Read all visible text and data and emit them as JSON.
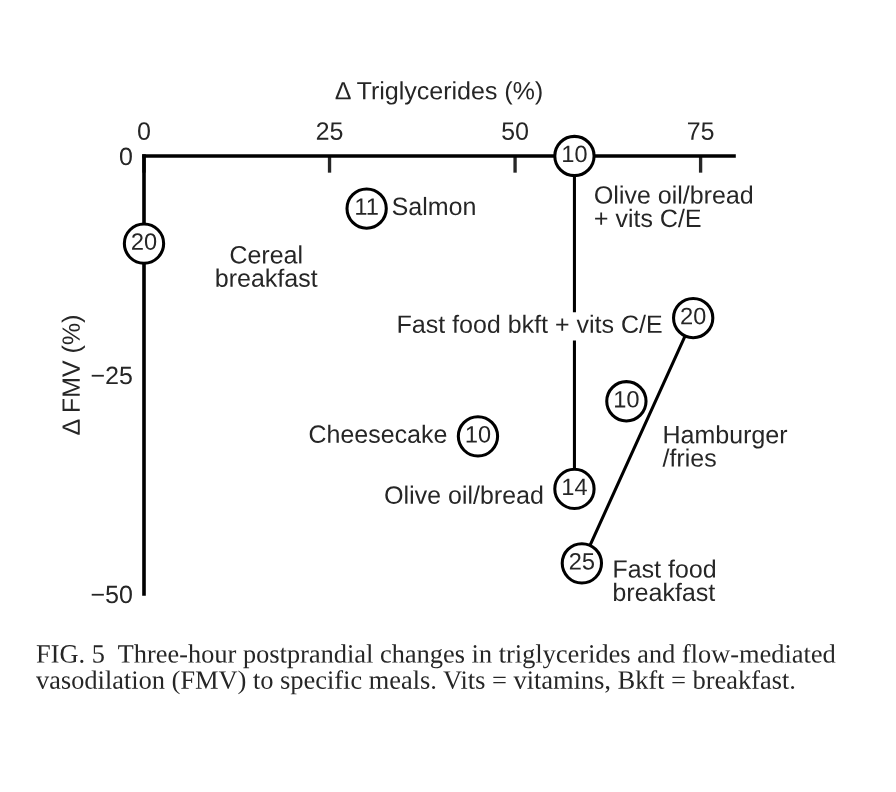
{
  "chart_data": {
    "type": "scatter",
    "xlabel": "Δ Triglycerides (%)",
    "ylabel": "Δ FMV (%)",
    "xlim": [
      0,
      79.5
    ],
    "ylim": [
      -50,
      0
    ],
    "xticks": [
      0,
      25,
      50,
      75
    ],
    "yticks": [
      {
        "value": 0,
        "label": "0"
      },
      {
        "value": -25,
        "label": "−25"
      },
      {
        "value": -50,
        "label": "−50"
      }
    ],
    "grid": false,
    "legend": false,
    "series": [
      {
        "marker": "circle",
        "color": "#000000",
        "x": [
          0,
          30,
          58,
          74,
          65,
          45,
          58,
          59
        ],
        "values": [
          -10,
          -6,
          0,
          -18.5,
          -28,
          -32,
          -38,
          -46.5
        ]
      },
      {
        "type": "line",
        "color": "#000000",
        "x": [
          58,
          58
        ],
        "values": [
          -38,
          0
        ]
      },
      {
        "type": "line",
        "color": "#000000",
        "x": [
          59,
          74
        ],
        "values": [
          -46.5,
          -18.5
        ]
      }
    ],
    "annotations": [
      {
        "text": "20",
        "x": 0,
        "y": -10
      },
      {
        "text": "11",
        "x": 30,
        "y": -6
      },
      {
        "text": "10",
        "x": 58,
        "y": 0
      },
      {
        "text": "20",
        "x": 74,
        "y": -18.5
      },
      {
        "text": "10",
        "x": 65,
        "y": -28
      },
      {
        "text": "10",
        "x": 45,
        "y": -32
      },
      {
        "text": "14",
        "x": 58,
        "y": -38
      },
      {
        "text": "25",
        "x": 59,
        "y": -46.5
      },
      {
        "text": "Cereal\nbreakfast",
        "x": 0,
        "y": -10
      },
      {
        "text": "Salmon",
        "x": 30,
        "y": -6
      },
      {
        "text": "Olive oil/bread\n+ vits C/E",
        "x": 58,
        "y": 0
      },
      {
        "text": "Fast food bkft + vits C/E",
        "x": 74,
        "y": -18.5
      },
      {
        "text": "Hamburger\n/fries",
        "x": 65,
        "y": -28
      },
      {
        "text": "Cheesecake",
        "x": 45,
        "y": -32
      },
      {
        "text": "Olive oil/bread",
        "x": 58,
        "y": -38
      },
      {
        "text": "Fast food\nbreakfast",
        "x": 59,
        "y": -46.5
      },
      "FIG. 5  Three-hour postprandial changes in triglycerides and flow-mediated vasodilation (FMV) to specific meals. Vits = vitamins, Bkft = breakfast."
    ]
  }
}
